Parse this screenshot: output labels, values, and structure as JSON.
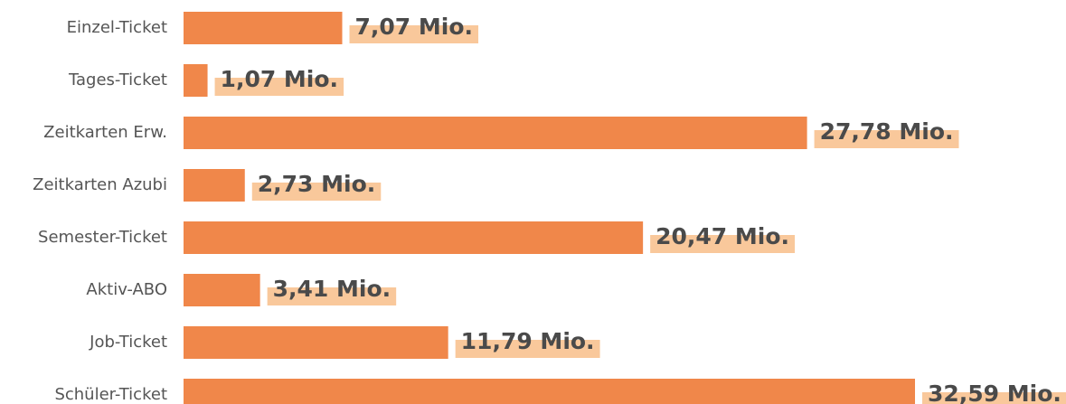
{
  "chart_data": {
    "type": "bar",
    "orientation": "horizontal",
    "categories": [
      "Einzel-Ticket",
      "Tages-Ticket",
      "Zeitkarten Erw.",
      "Zeitkarten Azubi",
      "Semester-Ticket",
      "Aktiv-ABO",
      "Job-Ticket",
      "Schüler-Ticket"
    ],
    "values": [
      7.07,
      1.07,
      27.78,
      2.73,
      20.47,
      3.41,
      11.79,
      32.59
    ],
    "value_labels": [
      "7,07 Mio.",
      "1,07 Mio.",
      "27,78 Mio.",
      "2,73 Mio.",
      "20,47 Mio.",
      "3,41 Mio.",
      "11,79 Mio.",
      "32,59 Mio."
    ],
    "color": "#f0874a",
    "label_background": "#f9c89b"
  }
}
